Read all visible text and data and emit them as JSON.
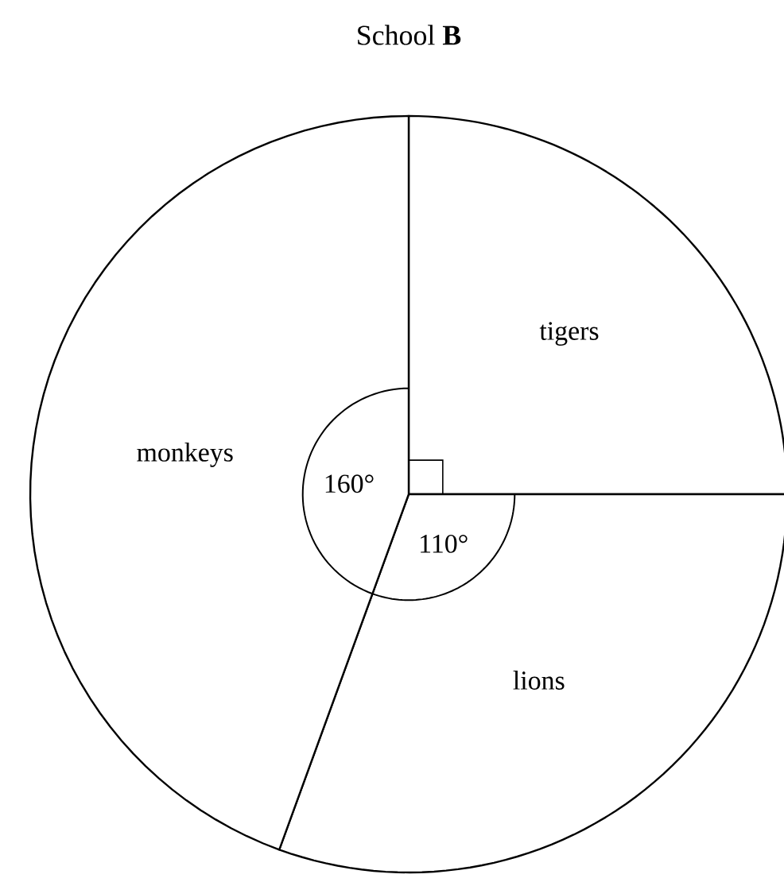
{
  "chart_data": {
    "type": "pie",
    "title": "School **B**",
    "categories": [
      "tigers",
      "lions",
      "monkeys"
    ],
    "values": [
      90,
      110,
      160
    ],
    "value_labels": [
      null,
      "110°",
      "160°"
    ],
    "colors": [
      "#ffffff",
      "#ffffff",
      "#ffffff"
    ]
  }
}
